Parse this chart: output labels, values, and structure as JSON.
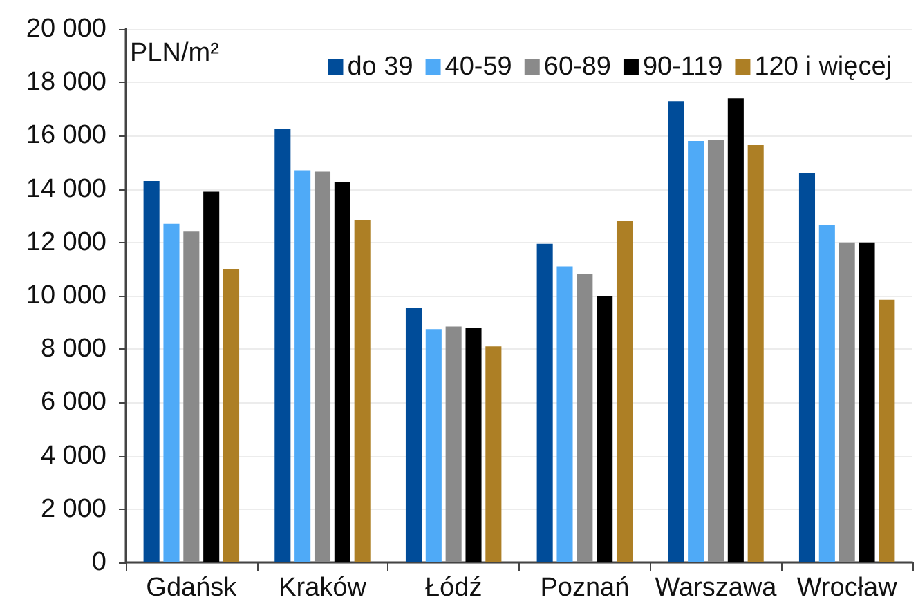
{
  "chart_data": {
    "type": "bar",
    "ylabel": "PLN/m²",
    "categories": [
      "Gdańsk",
      "Kraków",
      "Łódź",
      "Poznań",
      "Warszawa",
      "Wrocław"
    ],
    "series": [
      {
        "name": "do 39",
        "color": "#004c99",
        "values": [
          14300,
          16250,
          9550,
          11950,
          17300,
          14600
        ]
      },
      {
        "name": "40-59",
        "color": "#4faaf7",
        "values": [
          12700,
          14700,
          8750,
          11100,
          15800,
          12650
        ]
      },
      {
        "name": "60-89",
        "color": "#8a8a8a",
        "values": [
          12400,
          14650,
          8850,
          10800,
          15850,
          12000
        ]
      },
      {
        "name": "90-119",
        "color": "#000000",
        "values": [
          13900,
          14250,
          8800,
          10000,
          17400,
          12000
        ]
      },
      {
        "name": "120 i więcej",
        "color": "#ad7f25",
        "values": [
          11000,
          12850,
          8100,
          12800,
          15650,
          9850
        ]
      }
    ],
    "ylim": [
      0,
      20000
    ],
    "yticks": [
      {
        "value": 0,
        "label": "0"
      },
      {
        "value": 2000,
        "label": "2 000"
      },
      {
        "value": 4000,
        "label": "4 000"
      },
      {
        "value": 6000,
        "label": "6 000"
      },
      {
        "value": 8000,
        "label": "8 000"
      },
      {
        "value": 10000,
        "label": "10 000"
      },
      {
        "value": 12000,
        "label": "12 000"
      },
      {
        "value": 14000,
        "label": "14 000"
      },
      {
        "value": 16000,
        "label": "16 000"
      },
      {
        "value": 18000,
        "label": "18 000"
      },
      {
        "value": 20000,
        "label": "20 000"
      }
    ],
    "grid": "y",
    "legend": "top right"
  }
}
